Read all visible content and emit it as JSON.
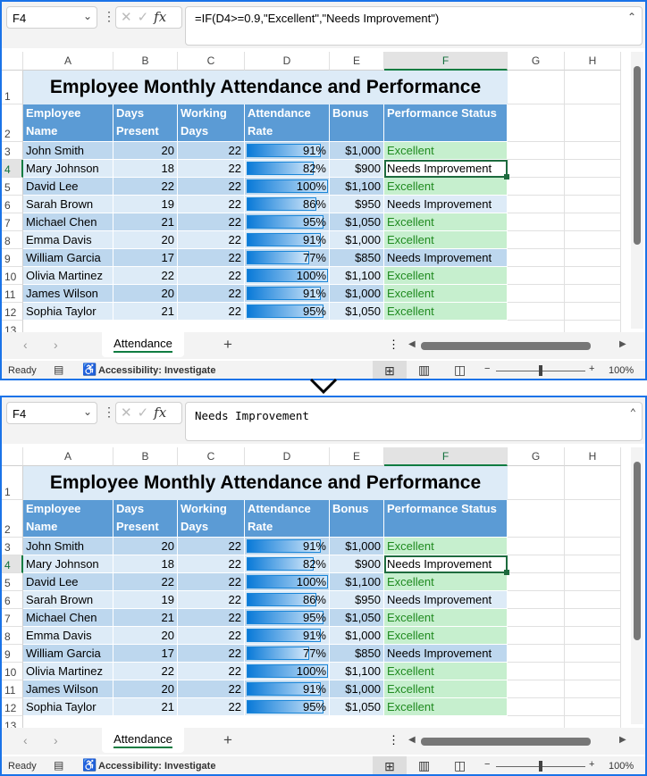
{
  "panels": [
    {
      "name_box": "F4",
      "formula": "=IF(D4>=0.9,\"Excellent\",\"Needs Improvement\")",
      "formula_mono": false
    },
    {
      "name_box": "F4",
      "formula": "Needs Improvement",
      "formula_mono": true
    }
  ],
  "columns": [
    "A",
    "B",
    "C",
    "D",
    "E",
    "F",
    "G",
    "H"
  ],
  "row_numbers": [
    "1",
    "2",
    "3",
    "4",
    "5",
    "6",
    "7",
    "8",
    "9",
    "10",
    "11",
    "12",
    "13"
  ],
  "selected_cell": {
    "column": "F",
    "row": "4"
  },
  "title": "Employee Monthly Attendance and Performance",
  "headers": [
    "Employee Name",
    "Days Present",
    "Working Days",
    "Attendance Rate",
    "Bonus",
    "Performance Status"
  ],
  "rows": [
    {
      "name": "John Smith",
      "present": "20",
      "working": "22",
      "rate": "91%",
      "rate_value": 91,
      "bonus": "$1,000",
      "status": "Excellent"
    },
    {
      "name": "Mary Johnson",
      "present": "18",
      "working": "22",
      "rate": "82%",
      "rate_value": 82,
      "bonus": "$900",
      "status": "Needs Improvement"
    },
    {
      "name": "David Lee",
      "present": "22",
      "working": "22",
      "rate": "100%",
      "rate_value": 100,
      "bonus": "$1,100",
      "status": "Excellent"
    },
    {
      "name": "Sarah Brown",
      "present": "19",
      "working": "22",
      "rate": "86%",
      "rate_value": 86,
      "bonus": "$950",
      "status": "Needs Improvement"
    },
    {
      "name": "Michael Chen",
      "present": "21",
      "working": "22",
      "rate": "95%",
      "rate_value": 95,
      "bonus": "$1,050",
      "status": "Excellent"
    },
    {
      "name": "Emma Davis",
      "present": "20",
      "working": "22",
      "rate": "91%",
      "rate_value": 91,
      "bonus": "$1,000",
      "status": "Excellent"
    },
    {
      "name": "William Garcia",
      "present": "17",
      "working": "22",
      "rate": "77%",
      "rate_value": 77,
      "bonus": "$850",
      "status": "Needs Improvement"
    },
    {
      "name": "Olivia Martinez",
      "present": "22",
      "working": "22",
      "rate": "100%",
      "rate_value": 100,
      "bonus": "$1,100",
      "status": "Excellent"
    },
    {
      "name": "James Wilson",
      "present": "20",
      "working": "22",
      "rate": "91%",
      "rate_value": 91,
      "bonus": "$1,000",
      "status": "Excellent"
    },
    {
      "name": "Sophia Taylor",
      "present": "21",
      "working": "22",
      "rate": "95%",
      "rate_value": 95,
      "bonus": "$1,050",
      "status": "Excellent"
    }
  ],
  "sheet_tab": "Attendance",
  "add_sheet": "+",
  "status": {
    "ready": "Ready",
    "accessibility": "Accessibility: Investigate",
    "zoom": "100%",
    "minus": "−",
    "plus": "+"
  },
  "colors": {
    "header": "#5b9bd5",
    "row_dark": "#bdd7ee",
    "row_light": "#ddebf7",
    "excellent_bg": "#c6efce",
    "excellent_text": "#1f8a1f",
    "accent": "#107c41"
  }
}
